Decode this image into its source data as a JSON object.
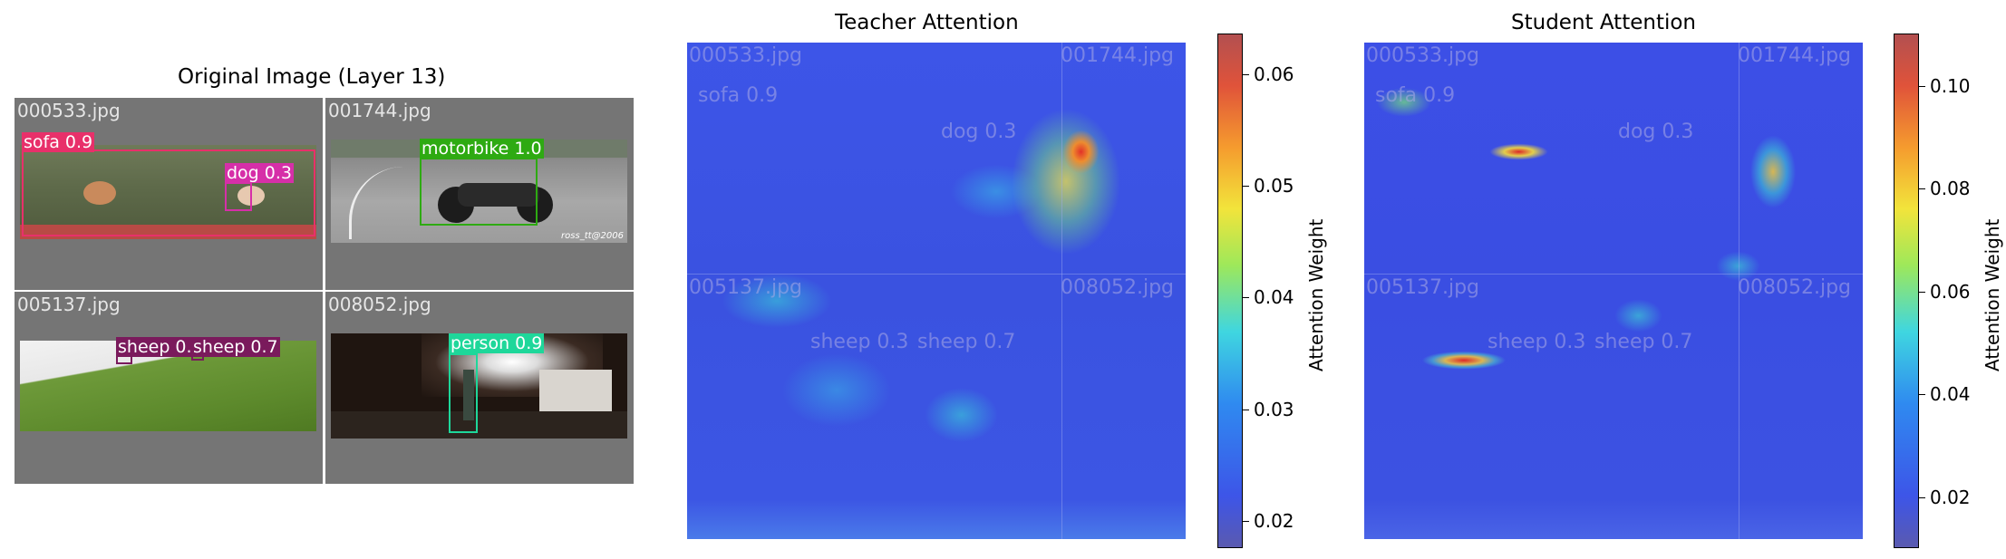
{
  "left_panel": {
    "title": "Original Image (Layer 13)",
    "tiles": [
      {
        "filename": "000533.jpg",
        "detections": [
          "sofa 0.9",
          "dog 0.3"
        ]
      },
      {
        "filename": "001744.jpg",
        "detections": [
          "motorbike 1.0"
        ],
        "watermark": "ross_tt@2006"
      },
      {
        "filename": "005137.jpg",
        "detections": [
          "sheep 0.3",
          "sheep 0.7"
        ]
      },
      {
        "filename": "008052.jpg",
        "detections": [
          "person 0.9"
        ]
      }
    ]
  },
  "teacher": {
    "title": "Teacher Attention",
    "colorbar_label": "Attention Weight",
    "ticks": [
      "0.06",
      "0.05",
      "0.04",
      "0.03",
      "0.02"
    ]
  },
  "student": {
    "title": "Student Attention",
    "colorbar_label": "Attention Weight",
    "ticks": [
      "0.10",
      "0.08",
      "0.06",
      "0.04",
      "0.02"
    ]
  },
  "colors": {
    "tile_gray": "#757575",
    "sofa_box": "#e8306a",
    "dog_box": "#d62fa8",
    "motorbike_box": "#2eaa12",
    "sheep_box": "#7a1a5c",
    "person_box": "#1ed79a",
    "colormap": [
      "#3a3a9a",
      "#2b53e6",
      "#2aa7f0",
      "#37e0d4",
      "#9ee85a",
      "#f2e43b",
      "#f59b2e",
      "#e0433a",
      "#a93a3a"
    ]
  }
}
